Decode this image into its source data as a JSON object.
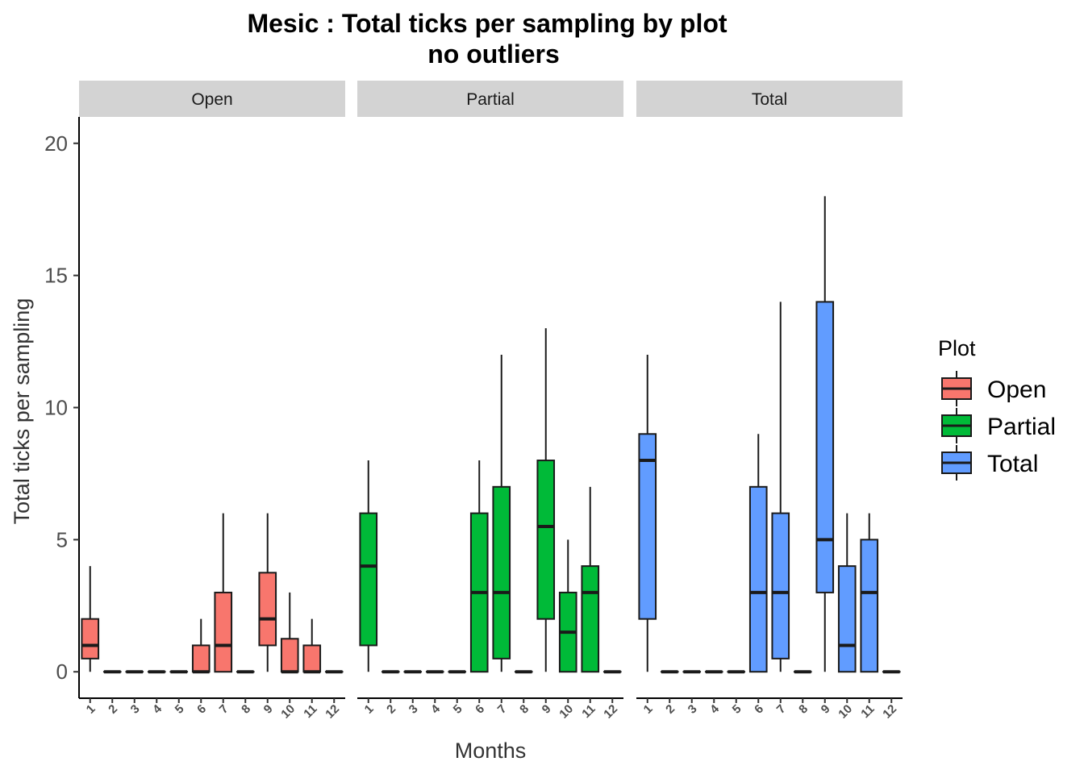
{
  "chart_data": {
    "type": "box",
    "title": "Mesic : Total ticks per sampling by plot",
    "subtitle": "no outliers",
    "xlabel": "Months",
    "ylabel": "Total ticks per sampling",
    "ylim": [
      -1,
      21
    ],
    "yticks": [
      0,
      5,
      10,
      15,
      20
    ],
    "categories": [
      "1",
      "2",
      "3",
      "4",
      "5",
      "6",
      "7",
      "8",
      "9",
      "10",
      "11",
      "12"
    ],
    "legend": {
      "title": "Plot",
      "position": "right"
    },
    "series": [
      {
        "name": "Open",
        "color": "#F8766D",
        "boxes": [
          {
            "month": "1",
            "min": 0,
            "q1": 0.5,
            "median": 1,
            "q3": 2,
            "max": 4
          },
          {
            "month": "2",
            "min": 0,
            "q1": 0,
            "median": 0,
            "q3": 0,
            "max": 0
          },
          {
            "month": "3",
            "min": 0,
            "q1": 0,
            "median": 0,
            "q3": 0,
            "max": 0
          },
          {
            "month": "4",
            "min": 0,
            "q1": 0,
            "median": 0,
            "q3": 0,
            "max": 0
          },
          {
            "month": "5",
            "min": 0,
            "q1": 0,
            "median": 0,
            "q3": 0,
            "max": 0
          },
          {
            "month": "6",
            "min": 0,
            "q1": 0,
            "median": 0,
            "q3": 1,
            "max": 2
          },
          {
            "month": "7",
            "min": 0,
            "q1": 0,
            "median": 1,
            "q3": 3,
            "max": 6
          },
          {
            "month": "8",
            "min": 0,
            "q1": 0,
            "median": 0,
            "q3": 0,
            "max": 0
          },
          {
            "month": "9",
            "min": 0,
            "q1": 1,
            "median": 2,
            "q3": 3.75,
            "max": 6
          },
          {
            "month": "10",
            "min": 0,
            "q1": 0,
            "median": 0,
            "q3": 1.25,
            "max": 3
          },
          {
            "month": "11",
            "min": 0,
            "q1": 0,
            "median": 0,
            "q3": 1,
            "max": 2
          },
          {
            "month": "12",
            "min": 0,
            "q1": 0,
            "median": 0,
            "q3": 0,
            "max": 0
          }
        ]
      },
      {
        "name": "Partial",
        "color": "#00BA38",
        "boxes": [
          {
            "month": "1",
            "min": 0,
            "q1": 1,
            "median": 4,
            "q3": 6,
            "max": 8
          },
          {
            "month": "2",
            "min": 0,
            "q1": 0,
            "median": 0,
            "q3": 0,
            "max": 0
          },
          {
            "month": "3",
            "min": 0,
            "q1": 0,
            "median": 0,
            "q3": 0,
            "max": 0
          },
          {
            "month": "4",
            "min": 0,
            "q1": 0,
            "median": 0,
            "q3": 0,
            "max": 0
          },
          {
            "month": "5",
            "min": 0,
            "q1": 0,
            "median": 0,
            "q3": 0,
            "max": 0
          },
          {
            "month": "6",
            "min": 0,
            "q1": 0,
            "median": 3,
            "q3": 6,
            "max": 8
          },
          {
            "month": "7",
            "min": 0,
            "q1": 0.5,
            "median": 3,
            "q3": 7,
            "max": 12
          },
          {
            "month": "8",
            "min": 0,
            "q1": 0,
            "median": 0,
            "q3": 0,
            "max": 0
          },
          {
            "month": "9",
            "min": 0,
            "q1": 2,
            "median": 5.5,
            "q3": 8,
            "max": 13
          },
          {
            "month": "10",
            "min": 0,
            "q1": 0,
            "median": 1.5,
            "q3": 3,
            "max": 5
          },
          {
            "month": "11",
            "min": 0,
            "q1": 0,
            "median": 3,
            "q3": 4,
            "max": 7
          },
          {
            "month": "12",
            "min": 0,
            "q1": 0,
            "median": 0,
            "q3": 0,
            "max": 0
          }
        ]
      },
      {
        "name": "Total",
        "color": "#619CFF",
        "boxes": [
          {
            "month": "1",
            "min": 0,
            "q1": 2,
            "median": 8,
            "q3": 9,
            "max": 12
          },
          {
            "month": "2",
            "min": 0,
            "q1": 0,
            "median": 0,
            "q3": 0,
            "max": 0
          },
          {
            "month": "3",
            "min": 0,
            "q1": 0,
            "median": 0,
            "q3": 0,
            "max": 0
          },
          {
            "month": "4",
            "min": 0,
            "q1": 0,
            "median": 0,
            "q3": 0,
            "max": 0
          },
          {
            "month": "5",
            "min": 0,
            "q1": 0,
            "median": 0,
            "q3": 0,
            "max": 0
          },
          {
            "month": "6",
            "min": 0,
            "q1": 0,
            "median": 3,
            "q3": 7,
            "max": 9
          },
          {
            "month": "7",
            "min": 0,
            "q1": 0.5,
            "median": 3,
            "q3": 6,
            "max": 14
          },
          {
            "month": "8",
            "min": 0,
            "q1": 0,
            "median": 0,
            "q3": 0,
            "max": 0
          },
          {
            "month": "9",
            "min": 0,
            "q1": 3,
            "median": 5,
            "q3": 14,
            "max": 18
          },
          {
            "month": "10",
            "min": 0,
            "q1": 0,
            "median": 1,
            "q3": 4,
            "max": 6
          },
          {
            "month": "11",
            "min": 0,
            "q1": 0,
            "median": 3,
            "q3": 5,
            "max": 6
          },
          {
            "month": "12",
            "min": 0,
            "q1": 0,
            "median": 0,
            "q3": 0,
            "max": 0
          }
        ]
      }
    ]
  }
}
